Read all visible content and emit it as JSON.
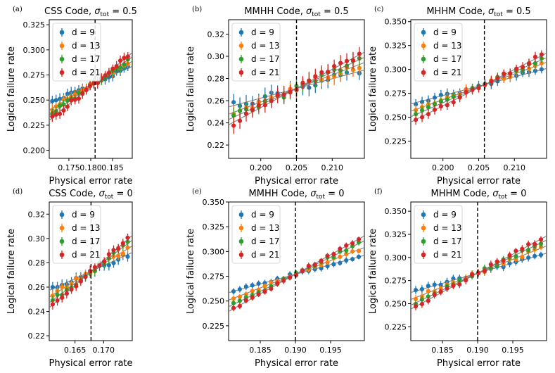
{
  "figure": {
    "series_colors": [
      "#1f77b4",
      "#ff7f0e",
      "#2ca02c",
      "#d62728"
    ],
    "fit_line_color": "#808080"
  },
  "chart_data": [
    {
      "type": "scatter",
      "panel_label": "(a)",
      "title_main": "CSS Code, ",
      "title_symbol": "σ",
      "title_sub": "tot",
      "title_tail": " = 0.5",
      "xlabel": "Physical error rate",
      "ylabel": "Logical failure rate",
      "xlim": [
        0.1705,
        0.1895
      ],
      "ylim": [
        0.192,
        0.33
      ],
      "xticks": [
        0.175,
        0.18,
        0.185
      ],
      "xtick_labels": [
        "0.175",
        "0.180",
        "0.185"
      ],
      "yticks": [
        0.2,
        0.225,
        0.25,
        0.275,
        0.3,
        0.325
      ],
      "ytick_labels": [
        "0.200",
        "0.225",
        "0.250",
        "0.275",
        "0.300",
        "0.325"
      ],
      "threshold": 0.181,
      "threshold_value": 0.267,
      "x_start": 0.1712,
      "x_end": 0.1885,
      "num_points": 21,
      "error_bar": 0.005,
      "series": [
        {
          "name": "d = 9",
          "slope": 1.95
        },
        {
          "name": "d = 13",
          "slope": 2.55
        },
        {
          "name": "d = 17",
          "slope": 3.05
        },
        {
          "name": "d = 21",
          "slope": 3.55
        }
      ]
    },
    {
      "type": "scatter",
      "panel_label": "(b)",
      "title_main": "MMHH Code, ",
      "title_symbol": "σ",
      "title_sub": "tot",
      "title_tail": " = 0.5",
      "xlabel": "Physical error rate",
      "ylabel": "Logical failure rate",
      "xlim": [
        0.1955,
        0.2145
      ],
      "ylim": [
        0.208,
        0.333
      ],
      "xticks": [
        0.2,
        0.205,
        0.21
      ],
      "xtick_labels": [
        "0.200",
        "0.205",
        "0.210"
      ],
      "yticks": [
        0.22,
        0.24,
        0.26,
        0.28,
        0.3,
        0.32
      ],
      "ytick_labels": [
        "0.22",
        "0.24",
        "0.26",
        "0.28",
        "0.30",
        "0.32"
      ],
      "threshold": 0.205,
      "threshold_value": 0.271,
      "x_start": 0.1962,
      "x_end": 0.2138,
      "num_points": 21,
      "error_bar": 0.007,
      "series": [
        {
          "name": "d = 9",
          "slope": 1.75
        },
        {
          "name": "d = 13",
          "slope": 2.45
        },
        {
          "name": "d = 17",
          "slope": 2.95
        },
        {
          "name": "d = 21",
          "slope": 3.45
        }
      ]
    },
    {
      "type": "scatter",
      "panel_label": "(c)",
      "title_main": "MHHM Code, ",
      "title_symbol": "σ",
      "title_sub": "tot",
      "title_tail": " = 0.5",
      "xlabel": "Physical error rate",
      "ylabel": "Logical failure rate",
      "xlim": [
        0.1955,
        0.2145
      ],
      "ylim": [
        0.207,
        0.352
      ],
      "xticks": [
        0.2,
        0.205,
        0.21
      ],
      "xtick_labels": [
        "0.200",
        "0.205",
        "0.210"
      ],
      "yticks": [
        0.225,
        0.25,
        0.275,
        0.3,
        0.325,
        0.35
      ],
      "ytick_labels": [
        "0.225",
        "0.250",
        "0.275",
        "0.300",
        "0.325",
        "0.350"
      ],
      "threshold": 0.2058,
      "threshold_value": 0.284,
      "x_start": 0.1962,
      "x_end": 0.2138,
      "num_points": 21,
      "error_bar": 0.005,
      "series": [
        {
          "name": "d = 9",
          "slope": 1.95
        },
        {
          "name": "d = 13",
          "slope": 2.7
        },
        {
          "name": "d = 17",
          "slope": 3.25
        },
        {
          "name": "d = 21",
          "slope": 3.8
        }
      ]
    },
    {
      "type": "scatter",
      "panel_label": "(d)",
      "title_main": "CSS Code, ",
      "title_symbol": "σ",
      "title_sub": "tot",
      "title_tail": " = 0",
      "xlabel": "Physical error rate",
      "ylabel": "Logical failure rate",
      "xlim": [
        0.1605,
        0.175
      ],
      "ylim": [
        0.216,
        0.33
      ],
      "xticks": [
        0.165,
        0.17
      ],
      "xtick_labels": [
        "0.165",
        "0.170"
      ],
      "yticks": [
        0.22,
        0.24,
        0.26,
        0.28,
        0.3,
        0.32
      ],
      "ytick_labels": [
        "0.22",
        "0.24",
        "0.26",
        "0.28",
        "0.30",
        "0.32"
      ],
      "threshold": 0.1678,
      "threshold_value": 0.273,
      "x_start": 0.1611,
      "x_end": 0.1742,
      "num_points": 17,
      "error_bar": 0.004,
      "series": [
        {
          "name": "d = 9",
          "slope": 2.15
        },
        {
          "name": "d = 13",
          "slope": 2.9
        },
        {
          "name": "d = 17",
          "slope": 3.55
        },
        {
          "name": "d = 21",
          "slope": 4.1
        }
      ]
    },
    {
      "type": "scatter",
      "panel_label": "(e)",
      "title_main": "MMHH Code, ",
      "title_symbol": "σ",
      "title_sub": "tot",
      "title_tail": " = 0",
      "xlabel": "Physical error rate",
      "ylabel": "Logical failure rate",
      "xlim": [
        0.1805,
        0.1998
      ],
      "ylim": [
        0.21,
        0.35
      ],
      "xticks": [
        0.185,
        0.19,
        0.195
      ],
      "xtick_labels": [
        "0.185",
        "0.190",
        "0.195"
      ],
      "yticks": [
        0.225,
        0.25,
        0.275,
        0.3,
        0.325,
        0.35
      ],
      "ytick_labels": [
        "0.225",
        "0.250",
        "0.275",
        "0.300",
        "0.325",
        "0.350"
      ],
      "threshold": 0.19,
      "threshold_value": 0.277,
      "x_start": 0.1812,
      "x_end": 0.199,
      "num_points": 21,
      "error_bar": 0.003,
      "series": [
        {
          "name": "d = 9",
          "slope": 1.95
        },
        {
          "name": "d = 13",
          "slope": 2.75
        },
        {
          "name": "d = 17",
          "slope": 3.45
        },
        {
          "name": "d = 21",
          "slope": 3.95
        }
      ]
    },
    {
      "type": "scatter",
      "panel_label": "(f)",
      "title_main": "MHHM Code, ",
      "title_symbol": "σ",
      "title_sub": "tot",
      "title_tail": " = 0",
      "xlabel": "Physical error rate",
      "ylabel": "Logical failure rate",
      "xlim": [
        0.1805,
        0.1998
      ],
      "ylim": [
        0.21,
        0.36
      ],
      "xticks": [
        0.185,
        0.19,
        0.195
      ],
      "xtick_labels": [
        "0.185",
        "0.190",
        "0.195"
      ],
      "yticks": [
        0.225,
        0.25,
        0.275,
        0.3,
        0.325,
        0.35
      ],
      "ytick_labels": [
        "0.225",
        "0.250",
        "0.275",
        "0.300",
        "0.325",
        "0.350"
      ],
      "threshold": 0.19,
      "threshold_value": 0.283,
      "x_start": 0.1812,
      "x_end": 0.199,
      "num_points": 21,
      "error_bar": 0.004,
      "series": [
        {
          "name": "d = 9",
          "slope": 2.2
        },
        {
          "name": "d = 13",
          "slope": 3.0
        },
        {
          "name": "d = 17",
          "slope": 3.65
        },
        {
          "name": "d = 21",
          "slope": 4.1
        }
      ]
    }
  ]
}
